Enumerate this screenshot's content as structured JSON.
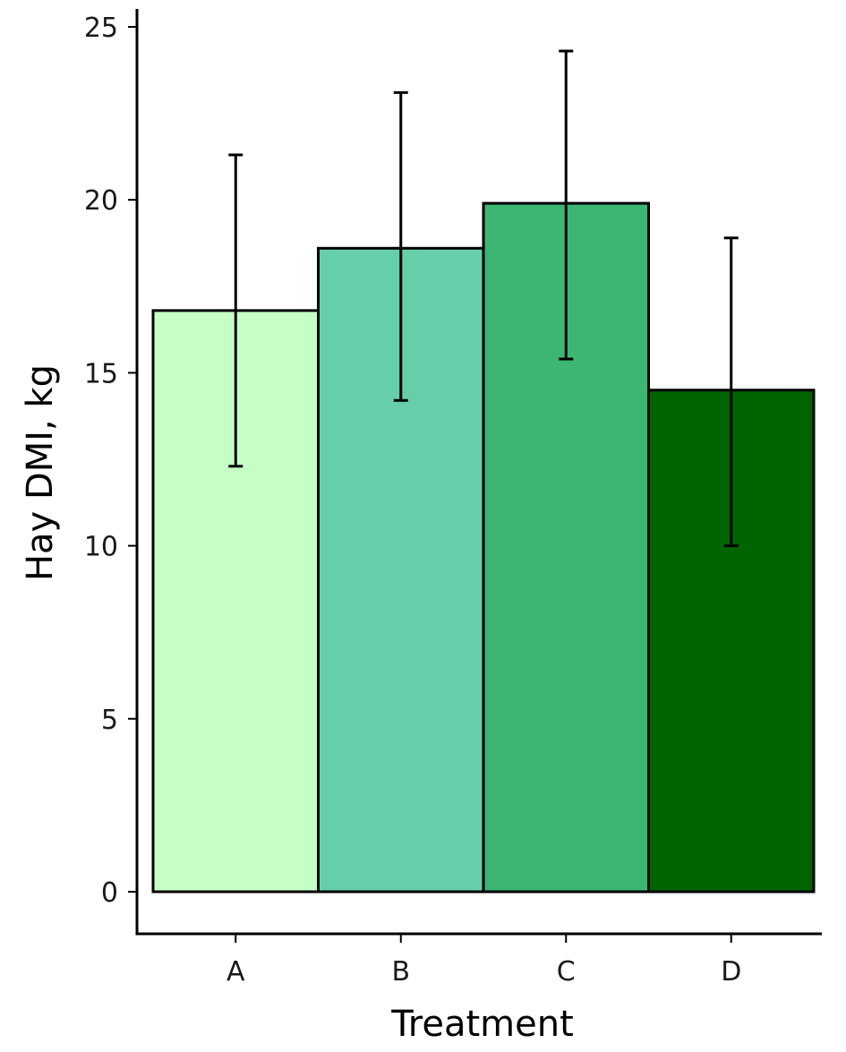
{
  "chart_data": {
    "type": "bar",
    "title": "",
    "xlabel": "Treatment",
    "ylabel": "Hay DMI, kg",
    "categories": [
      "A",
      "B",
      "C",
      "D"
    ],
    "values": [
      16.8,
      18.6,
      19.9,
      14.5
    ],
    "error_bars": [
      {
        "low": 12.3,
        "high": 21.3
      },
      {
        "low": 14.2,
        "high": 23.1
      },
      {
        "low": 15.4,
        "high": 24.3
      },
      {
        "low": 10.0,
        "high": 18.9
      }
    ],
    "colors": [
      "#c6ffc6",
      "#66cfaa",
      "#3cb672",
      "#006400"
    ],
    "ylim": [
      0,
      25
    ],
    "yticks": [
      "0",
      "5",
      "10",
      "15",
      "20",
      "25"
    ],
    "grid": false,
    "legend": "none"
  }
}
